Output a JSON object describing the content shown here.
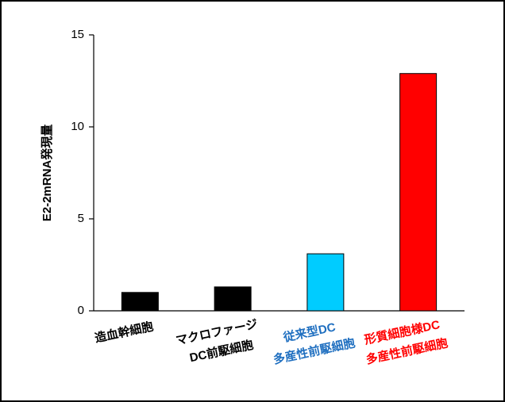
{
  "chart_data": {
    "type": "bar",
    "ylabel": "E2-2mRNA発現量",
    "categories": [
      [
        "造血幹細胞"
      ],
      [
        "マクロファージ",
        "DC前駆細胞"
      ],
      [
        "従来型DC",
        "多産性前駆細胞"
      ],
      [
        "形質細胞様DC",
        "多産性前駆細胞"
      ]
    ],
    "values": [
      1.0,
      1.3,
      3.1,
      12.9
    ],
    "colors": [
      "#000000",
      "#000000",
      "#00ccff",
      "#ff0000"
    ],
    "label_colors": [
      "#000000",
      "#000000",
      "#1f6fc0",
      "#ff0000"
    ],
    "ylim": [
      0,
      15
    ],
    "yticks": [
      0,
      5,
      10,
      15
    ],
    "grid": false
  }
}
